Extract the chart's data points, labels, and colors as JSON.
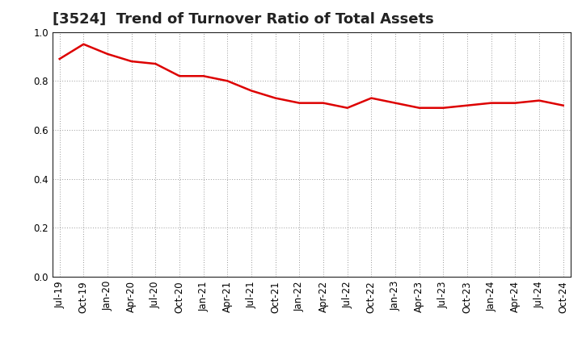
{
  "title": "[3524]  Trend of Turnover Ratio of Total Assets",
  "x_labels": [
    "Jul-19",
    "Oct-19",
    "Jan-20",
    "Apr-20",
    "Jul-20",
    "Oct-20",
    "Jan-21",
    "Apr-21",
    "Jul-21",
    "Oct-21",
    "Jan-22",
    "Apr-22",
    "Jul-22",
    "Oct-22",
    "Jan-23",
    "Apr-23",
    "Jul-23",
    "Oct-23",
    "Jan-24",
    "Apr-24",
    "Jul-24",
    "Oct-24"
  ],
  "values": [
    0.89,
    0.95,
    0.91,
    0.88,
    0.87,
    0.82,
    0.82,
    0.8,
    0.76,
    0.73,
    0.71,
    0.71,
    0.69,
    0.73,
    0.71,
    0.69,
    0.69,
    0.7,
    0.71,
    0.71,
    0.72,
    0.7
  ],
  "line_color": "#dd0000",
  "line_width": 1.8,
  "ylim": [
    0.0,
    1.0
  ],
  "yticks": [
    0.0,
    0.2,
    0.4,
    0.6,
    0.8,
    1.0
  ],
  "grid_color": "#999999",
  "background_color": "#ffffff",
  "title_fontsize": 13,
  "tick_fontsize": 8.5,
  "title_color": "#222222",
  "spine_color": "#222222"
}
